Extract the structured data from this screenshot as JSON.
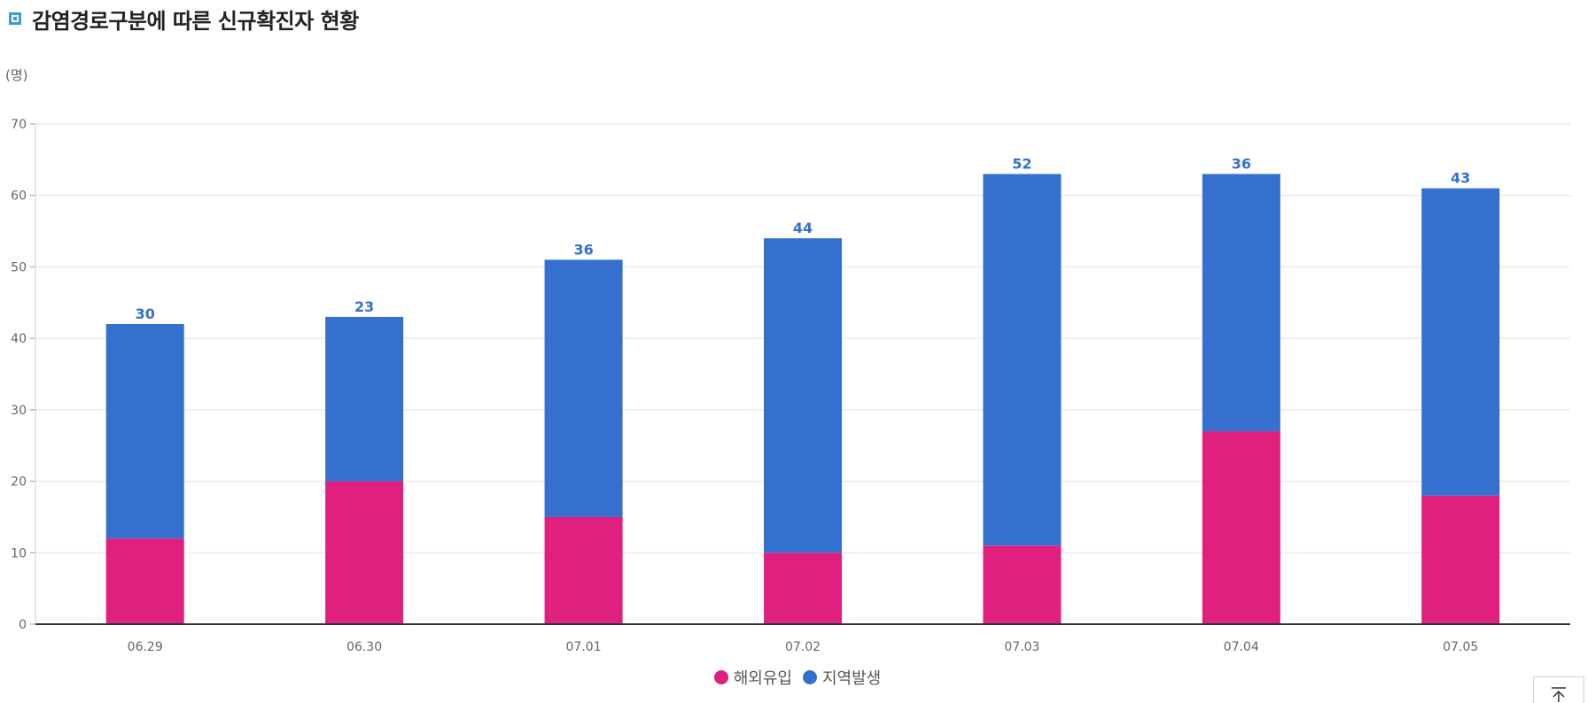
{
  "header": {
    "title": "감염경로구분에 따른 신규확진자 현황"
  },
  "colors": {
    "overseas": "#e0207e",
    "local": "#3570cf",
    "title_icon": "#3a9bd6"
  },
  "chart_data": {
    "type": "bar",
    "stacked": true,
    "unit_label": "(명)",
    "categories": [
      "06.29",
      "06.30",
      "07.01",
      "07.02",
      "07.03",
      "07.04",
      "07.05"
    ],
    "series": [
      {
        "name": "해외유입",
        "color": "#e0207e",
        "values": [
          12,
          20,
          15,
          10,
          11,
          27,
          18
        ]
      },
      {
        "name": "지역발생",
        "color": "#3570cf",
        "values": [
          30,
          23,
          36,
          44,
          52,
          36,
          43
        ]
      }
    ],
    "ylim": [
      0,
      70
    ],
    "yticks": [
      0,
      10,
      20,
      30,
      40,
      50,
      60,
      70
    ],
    "grid": true,
    "legend_position": "bottom"
  },
  "top_button": {
    "icon": "arrow-up-icon"
  }
}
